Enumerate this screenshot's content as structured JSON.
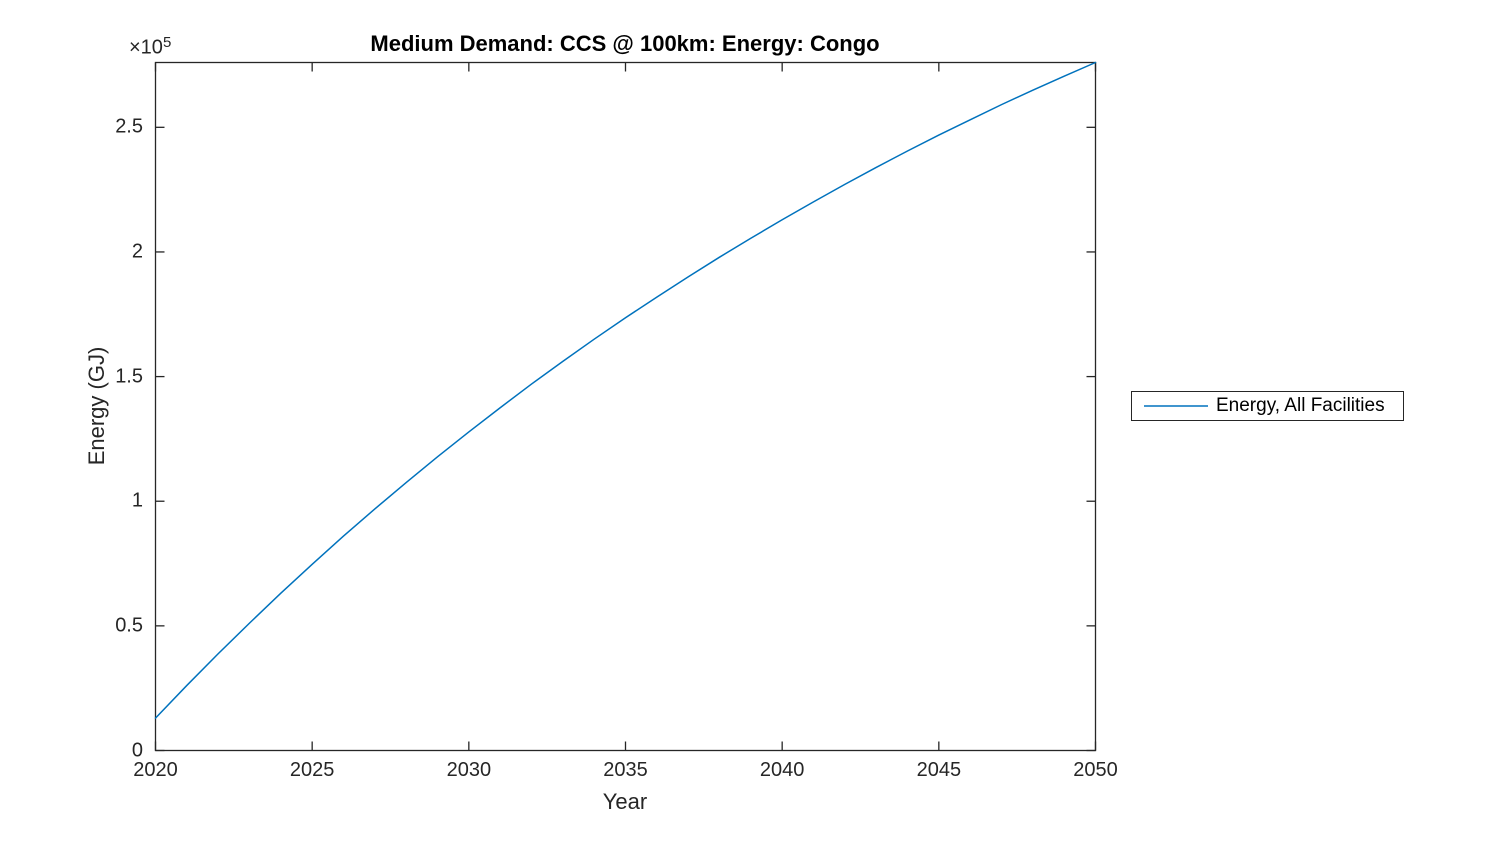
{
  "chart_data": {
    "type": "line",
    "title": "Medium Demand: CCS @ 100km: Energy: Congo",
    "xlabel": "Year",
    "ylabel": "Energy (GJ)",
    "y_axis_multiplier": "×10",
    "y_axis_multiplier_exponent": "5",
    "xlim": [
      2020,
      2050
    ],
    "ylim": [
      0,
      276000
    ],
    "x_ticks": [
      2020,
      2025,
      2030,
      2035,
      2040,
      2045,
      2050
    ],
    "y_ticks": [
      0,
      50000,
      100000,
      150000,
      200000,
      250000
    ],
    "y_tick_labels": [
      "0",
      "0.5",
      "1",
      "1.5",
      "2",
      "2.5"
    ],
    "grid": false,
    "legend_position": "right-outside",
    "line_color": "#0072BD",
    "axis_color": "#262626",
    "series": [
      {
        "name": "Energy, All Facilities",
        "x": [
          2020,
          2021,
          2022,
          2023,
          2024,
          2025,
          2026,
          2027,
          2028,
          2029,
          2030,
          2031,
          2032,
          2033,
          2034,
          2035,
          2036,
          2037,
          2038,
          2039,
          2040,
          2041,
          2042,
          2043,
          2044,
          2045,
          2046,
          2047,
          2048,
          2049,
          2050
        ],
        "y": [
          13000,
          26100,
          38800,
          51100,
          63100,
          74700,
          86000,
          96900,
          107500,
          117800,
          127800,
          137500,
          147000,
          156100,
          165000,
          173600,
          181900,
          190000,
          197900,
          205500,
          212900,
          220100,
          227100,
          233900,
          240500,
          246900,
          253000,
          259100,
          264900,
          270500,
          276000
        ]
      }
    ]
  }
}
